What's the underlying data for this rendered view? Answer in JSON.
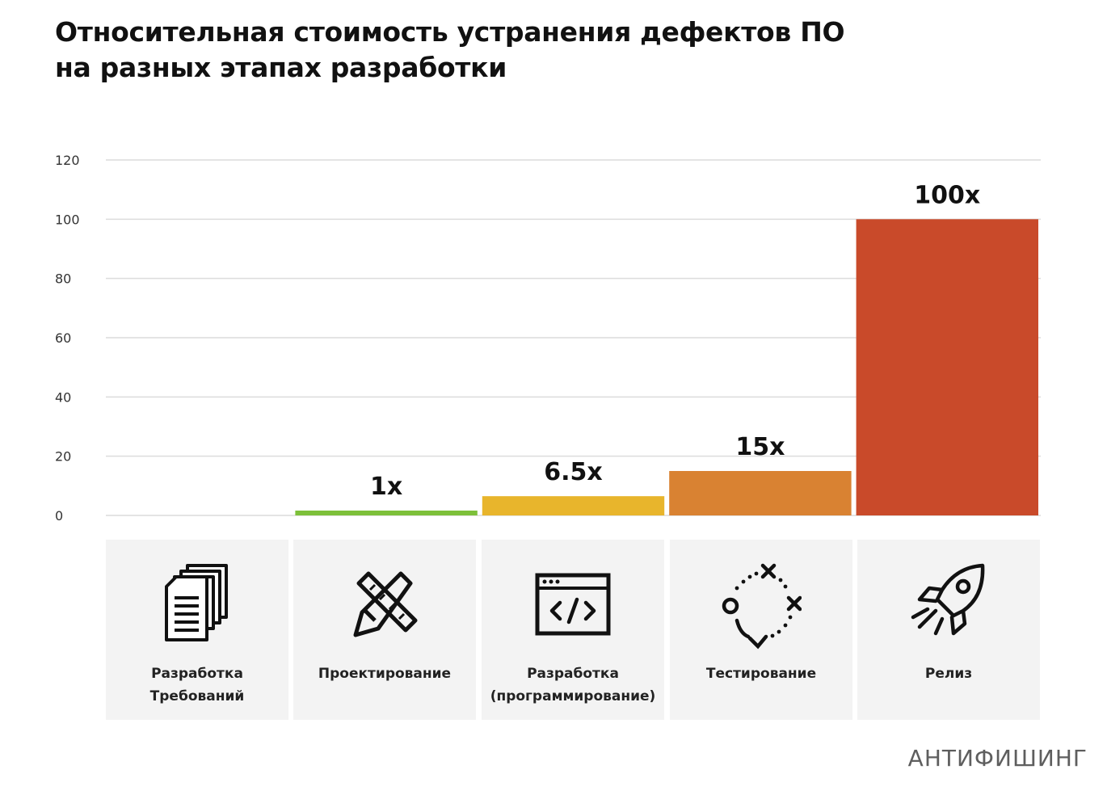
{
  "header": {
    "title_line1": "Относительная стоимость устранения дефектов ПО",
    "title_line2": "на разных этапах разработки"
  },
  "chart_data": {
    "type": "bar",
    "categories": [
      "Разработка Требований",
      "Проектирование",
      "Разработка (программирование)",
      "Тестирование",
      "Релиз"
    ],
    "values": [
      0,
      1,
      6.5,
      15,
      100
    ],
    "data_labels": [
      "",
      "1x",
      "6.5x",
      "15x",
      "100x"
    ],
    "bar_colors": [
      "#7dc03a",
      "#7dc03a",
      "#e8b52c",
      "#d98232",
      "#c94a2a"
    ],
    "ylim": [
      0,
      120
    ],
    "yticks": [
      0,
      20,
      40,
      60,
      80,
      100,
      120
    ],
    "grid": true
  },
  "categories_panel": [
    {
      "line1": "Разработка",
      "line2": "Требований",
      "icon": "documents-icon"
    },
    {
      "line1": "Проектирование",
      "line2": "",
      "icon": "pencil-ruler-icon"
    },
    {
      "line1": "Разработка",
      "line2": "(программирование)",
      "icon": "code-window-icon"
    },
    {
      "line1": "Тестирование",
      "line2": "",
      "icon": "test-path-icon"
    },
    {
      "line1": "Релиз",
      "line2": "",
      "icon": "rocket-icon"
    }
  ],
  "brand": {
    "text": "АНТИФИШИНГ"
  }
}
